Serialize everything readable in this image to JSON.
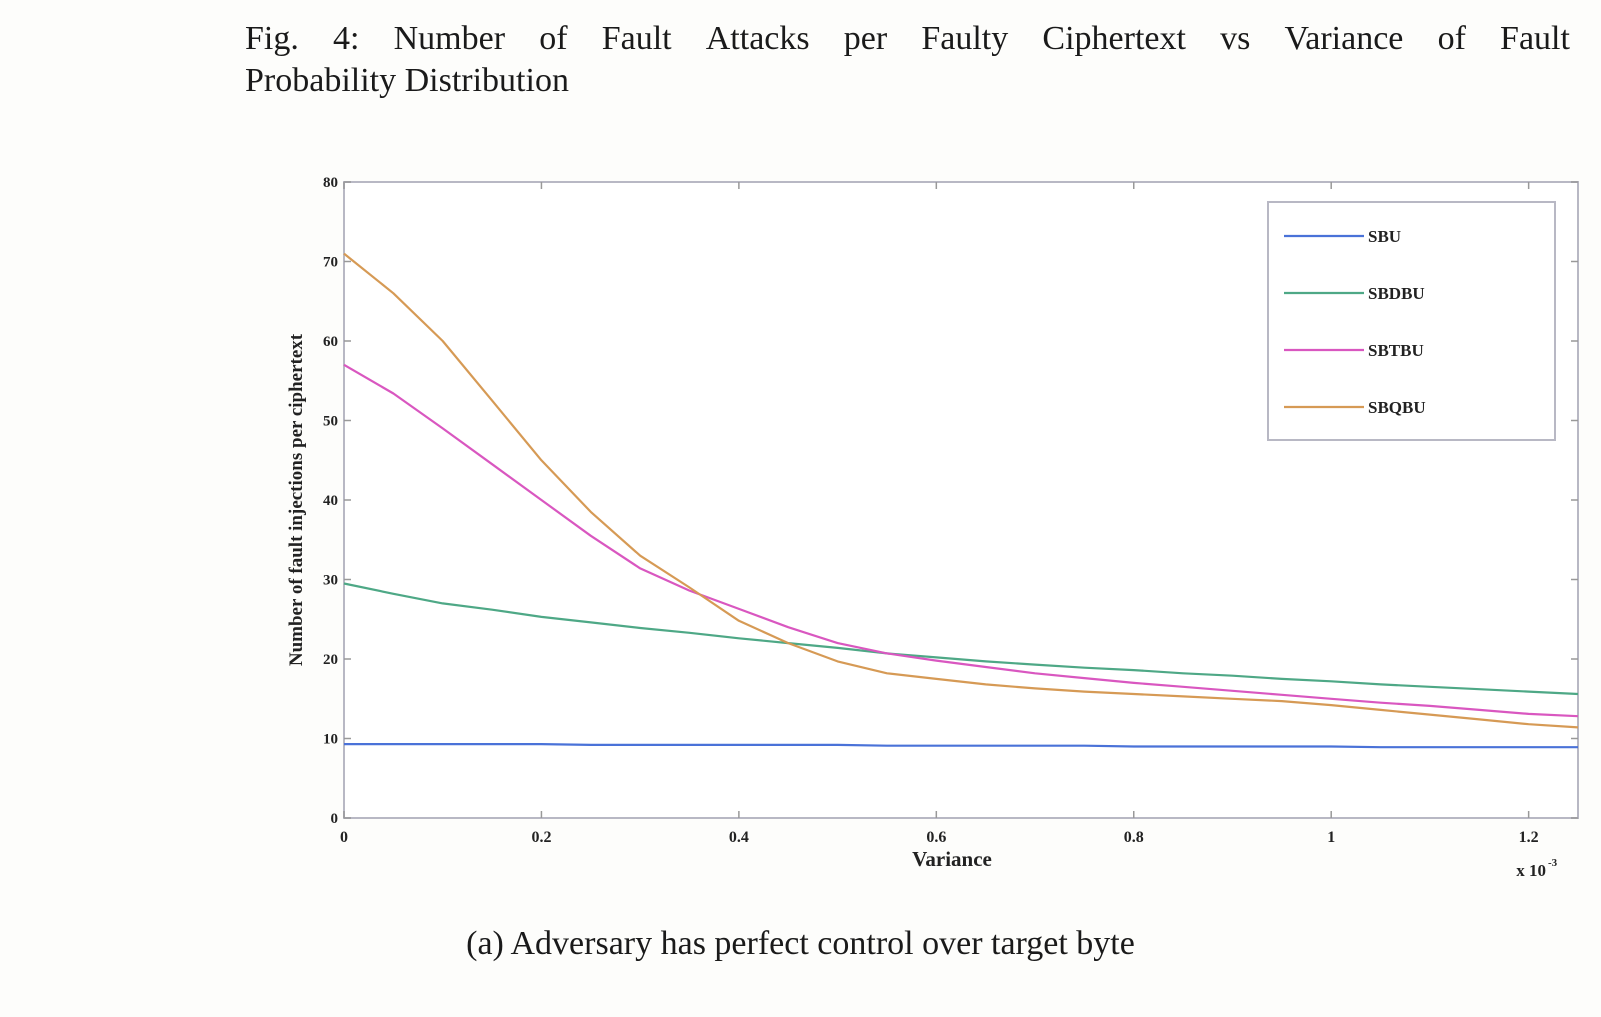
{
  "figure": {
    "title_line1_words": [
      "Fig.",
      "4:",
      "Number",
      "of",
      "Fault",
      "Attacks",
      "per",
      "Faulty",
      "Ciphertext",
      "vs",
      "Variance",
      "of",
      "Fault"
    ],
    "title_line2": "Probability Distribution",
    "caption": "(a) Adversary has perfect control over target byte"
  },
  "chart_data": {
    "type": "line",
    "xlabel": "Variance",
    "ylabel": "Number of fault injections per ciphertext",
    "x_multiplier_label": "x 10",
    "x_multiplier_exponent": "-3",
    "xlim": [
      0,
      1.25
    ],
    "ylim": [
      0,
      80
    ],
    "xticks": [
      0,
      0.2,
      0.4,
      0.6,
      0.8,
      1,
      1.2
    ],
    "xtick_labels": [
      "0",
      "0.2",
      "0.4",
      "0.6",
      "0.8",
      "1",
      "1.2"
    ],
    "yticks": [
      0,
      10,
      20,
      30,
      40,
      50,
      60,
      70,
      80
    ],
    "ytick_labels": [
      "0",
      "10",
      "20",
      "30",
      "40",
      "50",
      "60",
      "70",
      "80"
    ],
    "grid": false,
    "legend_position": "top-right",
    "x": [
      0,
      0.05,
      0.1,
      0.15,
      0.2,
      0.25,
      0.3,
      0.35,
      0.4,
      0.45,
      0.5,
      0.55,
      0.6,
      0.65,
      0.7,
      0.75,
      0.8,
      0.85,
      0.9,
      0.95,
      1.0,
      1.05,
      1.1,
      1.15,
      1.2,
      1.25
    ],
    "series": [
      {
        "name": "SBU",
        "color": "#4a72d8",
        "values": [
          9.3,
          9.3,
          9.3,
          9.3,
          9.3,
          9.2,
          9.2,
          9.2,
          9.2,
          9.2,
          9.2,
          9.1,
          9.1,
          9.1,
          9.1,
          9.1,
          9.0,
          9.0,
          9.0,
          9.0,
          9.0,
          8.9,
          8.9,
          8.9,
          8.9,
          8.9
        ]
      },
      {
        "name": "SBDBU",
        "color": "#4ea886",
        "values": [
          29.5,
          28.2,
          27.0,
          26.2,
          25.3,
          24.6,
          23.9,
          23.3,
          22.6,
          22.0,
          21.4,
          20.7,
          20.2,
          19.7,
          19.3,
          18.9,
          18.6,
          18.2,
          17.9,
          17.5,
          17.2,
          16.8,
          16.5,
          16.2,
          15.9,
          15.6
        ]
      },
      {
        "name": "SBTBU",
        "color": "#d957c0",
        "values": [
          57.0,
          53.4,
          49.0,
          44.5,
          40.0,
          35.5,
          31.4,
          28.6,
          26.3,
          24.0,
          22.0,
          20.7,
          19.8,
          19.0,
          18.2,
          17.6,
          17.0,
          16.5,
          16.0,
          15.5,
          15.0,
          14.5,
          14.1,
          13.6,
          13.1,
          12.8
        ]
      },
      {
        "name": "SBQBU",
        "color": "#d69a55",
        "values": [
          71.0,
          66.0,
          60.0,
          52.5,
          45.0,
          38.5,
          33.0,
          29.0,
          24.8,
          22.0,
          19.7,
          18.2,
          17.5,
          16.8,
          16.3,
          15.9,
          15.6,
          15.3,
          15.0,
          14.7,
          14.2,
          13.6,
          13.0,
          12.4,
          11.8,
          11.4
        ]
      }
    ]
  }
}
